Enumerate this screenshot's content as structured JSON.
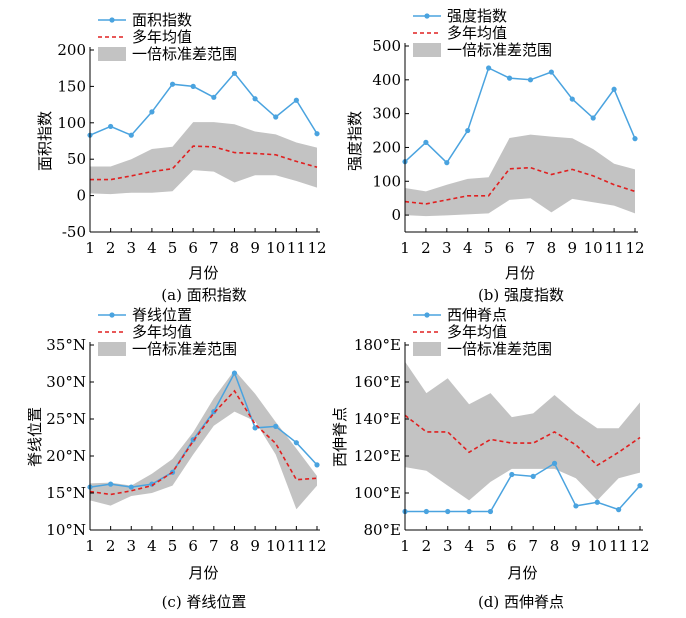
{
  "figure": {
    "panels": [
      {
        "caption": "(a) 面积指数"
      },
      {
        "caption": "(b) 强度指数"
      },
      {
        "caption": "(c) 脊线位置"
      },
      {
        "caption": "(d) 西伸脊点"
      }
    ]
  },
  "colors": {
    "series_line": "#4aa3df",
    "mean_line": "#e02020",
    "band_fill": "#c3c3c3",
    "axis": "#000000"
  },
  "chart_data": [
    {
      "type": "line",
      "ylabel": "面积指数",
      "xlabel": "月份",
      "x": [
        1,
        2,
        3,
        4,
        5,
        6,
        7,
        8,
        9,
        10,
        11,
        12
      ],
      "ylim": [
        -50,
        200
      ],
      "yticks": [
        -50,
        0,
        50,
        100,
        150,
        200
      ],
      "ytick_labels": [
        "-50",
        "0",
        "50",
        "100",
        "150",
        "200"
      ],
      "grid": false,
      "legend_position": "top",
      "series": [
        {
          "name": "面积指数",
          "style": "line-marker",
          "values": [
            83,
            95,
            83,
            115,
            153,
            150,
            135,
            168,
            133,
            108,
            131,
            85
          ]
        },
        {
          "name": "多年均值",
          "style": "dashed",
          "values": [
            22,
            22,
            27,
            33,
            37,
            68,
            67,
            59,
            58,
            56,
            47,
            39
          ]
        }
      ],
      "band": {
        "name": "一倍标准差范围",
        "lower": [
          3,
          2,
          4,
          4,
          6,
          35,
          33,
          18,
          28,
          28,
          20,
          11
        ],
        "upper": [
          40,
          40,
          50,
          64,
          67,
          101,
          101,
          98,
          88,
          84,
          73,
          66
        ]
      }
    },
    {
      "type": "line",
      "ylabel": "强度指数",
      "xlabel": "月份",
      "x": [
        1,
        2,
        3,
        4,
        5,
        6,
        7,
        8,
        9,
        10,
        11,
        12
      ],
      "ylim": [
        -50,
        500
      ],
      "yticks": [
        0,
        100,
        200,
        300,
        400,
        500
      ],
      "ytick_labels": [
        "0",
        "100",
        "200",
        "300",
        "400",
        "500"
      ],
      "grid": false,
      "legend_position": "top",
      "series": [
        {
          "name": "强度指数",
          "style": "line-marker",
          "values": [
            158,
            215,
            155,
            250,
            435,
            405,
            400,
            423,
            343,
            287,
            372,
            226
          ]
        },
        {
          "name": "多年均值",
          "style": "dashed",
          "values": [
            40,
            33,
            45,
            57,
            57,
            137,
            140,
            120,
            135,
            116,
            90,
            70
          ]
        }
      ],
      "band": {
        "name": "一倍标准差范围",
        "lower": [
          0,
          -3,
          -1,
          2,
          5,
          45,
          50,
          8,
          48,
          38,
          28,
          5
        ],
        "upper": [
          80,
          70,
          90,
          107,
          112,
          228,
          238,
          232,
          227,
          195,
          152,
          135
        ]
      }
    },
    {
      "type": "line",
      "ylabel": "脊线位置",
      "xlabel": "月份",
      "x": [
        1,
        2,
        3,
        4,
        5,
        6,
        7,
        8,
        9,
        10,
        11,
        12
      ],
      "ylim": [
        10,
        35
      ],
      "yticks": [
        10,
        15,
        20,
        25,
        30,
        35
      ],
      "ytick_labels": [
        "10°N",
        "15°N",
        "20°N",
        "25°N",
        "30°N",
        "35°N"
      ],
      "grid": false,
      "legend_position": "top",
      "series": [
        {
          "name": "脊线位置",
          "style": "line-marker",
          "values": [
            15.8,
            16.2,
            15.8,
            16.2,
            17.8,
            22.2,
            26.0,
            31.2,
            23.8,
            24.0,
            21.8,
            18.8
          ]
        },
        {
          "name": "多年均值",
          "style": "dashed",
          "values": [
            15.2,
            14.8,
            15.3,
            16.0,
            17.8,
            22.0,
            25.8,
            28.8,
            24.3,
            21.7,
            16.8,
            17.0
          ]
        }
      ],
      "band": {
        "name": "一倍标准差范围",
        "lower": [
          14.0,
          13.3,
          14.6,
          15.0,
          16.0,
          20.2,
          24.1,
          26.0,
          24.7,
          20.2,
          12.8,
          16.0
        ],
        "upper": [
          16.3,
          16.4,
          16.0,
          17.6,
          19.6,
          23.2,
          27.8,
          31.6,
          28.4,
          24.6,
          21.0,
          17.3
        ]
      }
    },
    {
      "type": "line",
      "ylabel": "西伸脊点",
      "xlabel": "月份",
      "x": [
        1,
        2,
        3,
        4,
        5,
        6,
        7,
        8,
        9,
        10,
        11,
        12
      ],
      "ylim": [
        80,
        180
      ],
      "yticks": [
        80,
        100,
        120,
        140,
        160,
        180
      ],
      "ytick_labels": [
        "80°E",
        "100°E",
        "120°E",
        "140°E",
        "160°E",
        "180°E"
      ],
      "grid": false,
      "legend_position": "top",
      "series": [
        {
          "name": "西伸脊点",
          "style": "line-marker",
          "values": [
            90,
            90,
            90,
            90,
            90,
            110,
            109,
            116,
            93,
            95,
            91,
            104
          ]
        },
        {
          "name": "多年均值",
          "style": "dashed",
          "values": [
            142,
            133,
            133,
            122,
            129,
            127,
            127,
            133,
            126,
            115,
            122,
            130
          ]
        }
      ],
      "band": {
        "name": "一倍标准差范围",
        "lower": [
          114,
          112,
          104,
          96,
          106,
          113,
          113,
          113,
          108,
          96,
          108,
          111
        ],
        "upper": [
          171,
          154,
          162,
          148,
          154,
          141,
          143,
          153,
          143,
          135,
          135,
          149
        ]
      }
    }
  ]
}
